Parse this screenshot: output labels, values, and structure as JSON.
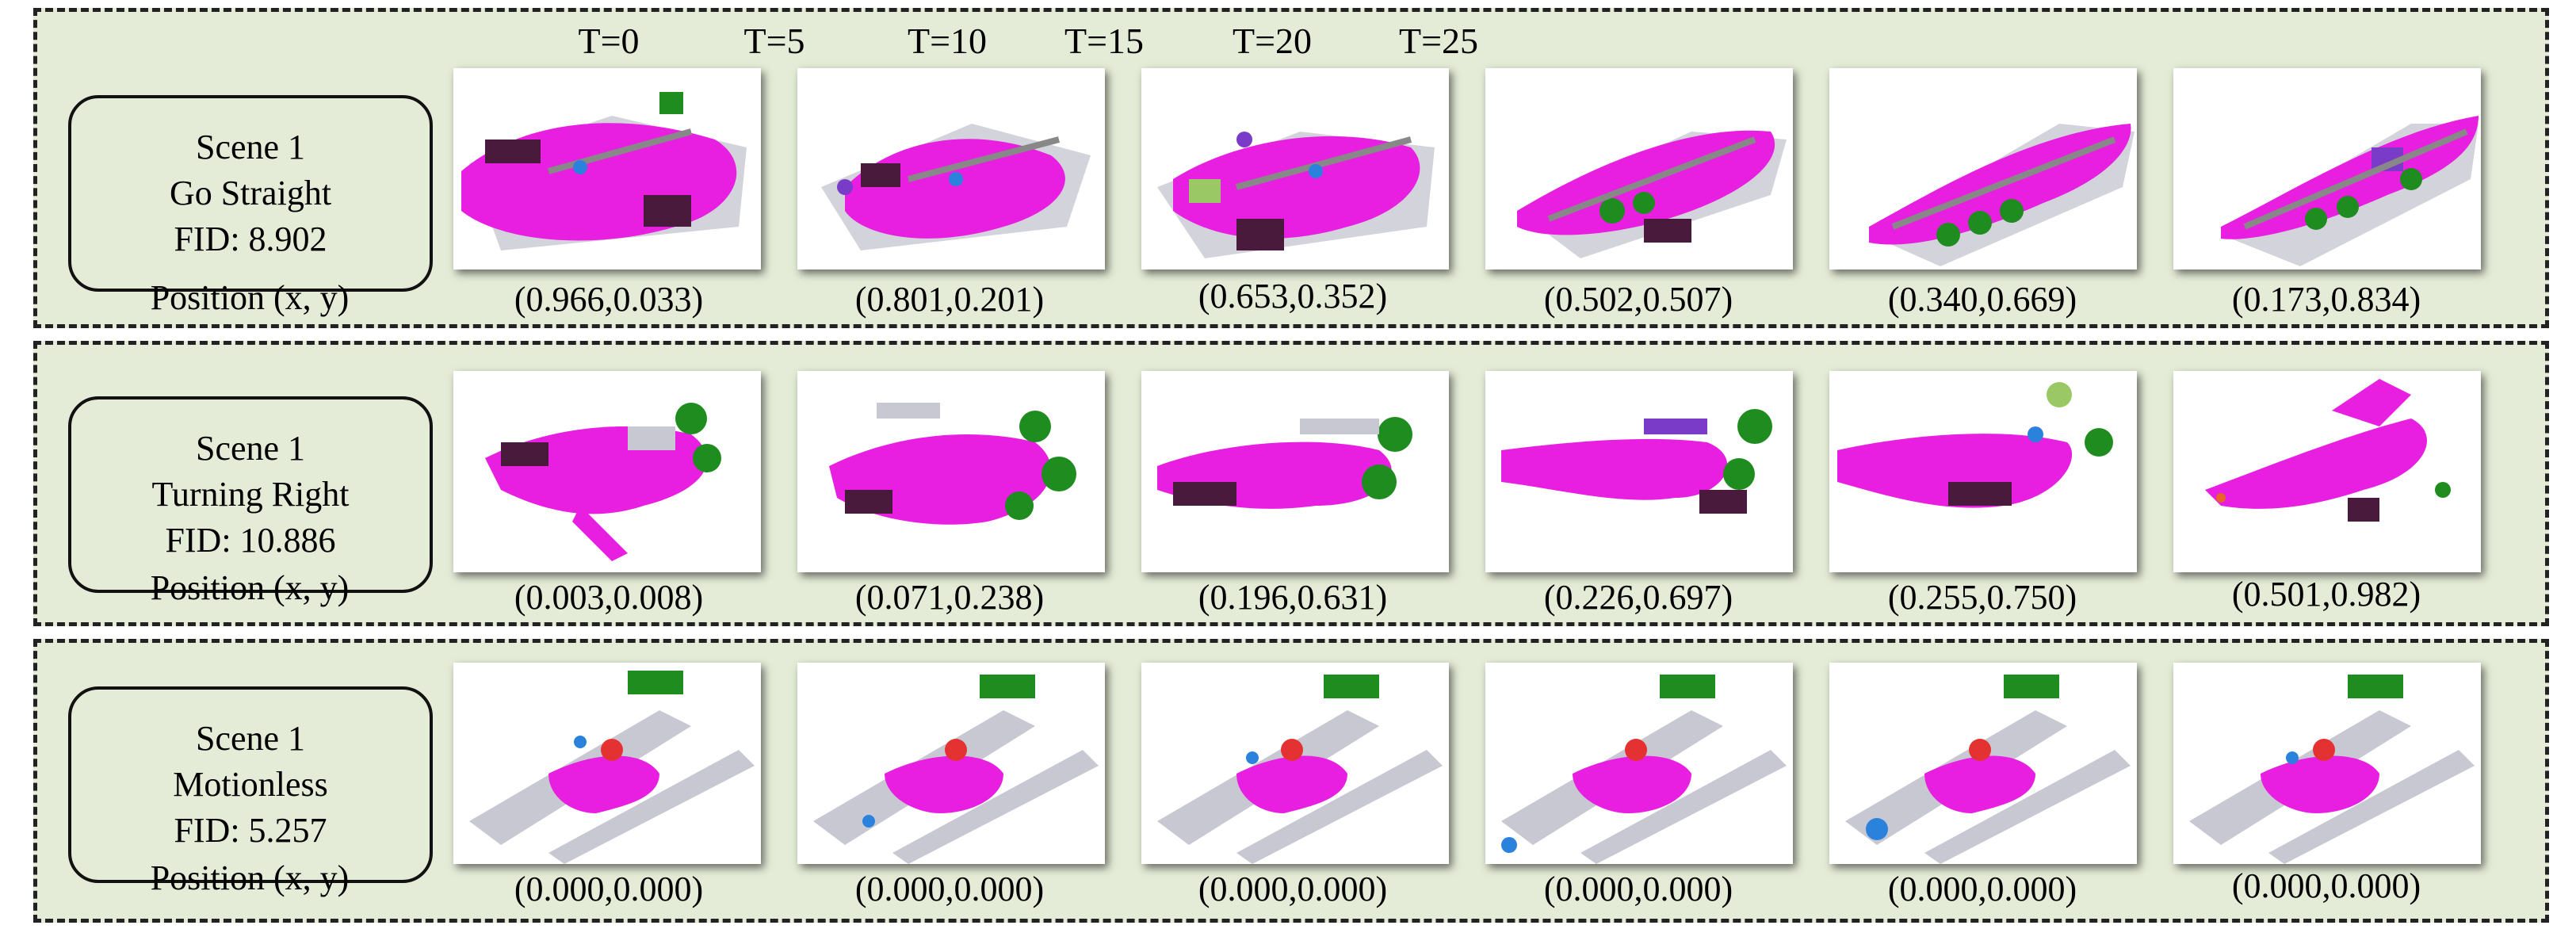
{
  "timesteps": [
    "T=0",
    "T=5",
    "T=10",
    "T=15",
    "T=20",
    "T=25"
  ],
  "position_label": "Position  (x, y)",
  "colors": {
    "panel_bg": "#e4ecd7",
    "road": "#e81ee0",
    "vegetation": "#1e8c1e",
    "building": "#c8c8d2",
    "terrain": "#4a1a3c",
    "vehicle": "#2a82dc"
  },
  "rows": [
    {
      "scene": "Scene 1",
      "motion": "Go Straight",
      "fid": "FID: 8.902",
      "positions": [
        "(0.966,0.033)",
        "(0.801,0.201)",
        "(0.653,0.352)",
        "(0.502,0.507)",
        "(0.340,0.669)",
        "(0.173,0.834)"
      ]
    },
    {
      "scene": "Scene 1",
      "motion": "Turning Right",
      "fid": "FID: 10.886",
      "positions": [
        "(0.003,0.008)",
        "(0.071,0.238)",
        "(0.196,0.631)",
        "(0.226,0.697)",
        "(0.255,0.750)",
        "(0.501,0.982)"
      ]
    },
    {
      "scene": "Scene 1",
      "motion": "Motionless",
      "fid": "FID: 5.257",
      "positions": [
        "(0.000,0.000)",
        "(0.000,0.000)",
        "(0.000,0.000)",
        "(0.000,0.000)",
        "(0.000,0.000)",
        "(0.000,0.000)"
      ]
    }
  ]
}
